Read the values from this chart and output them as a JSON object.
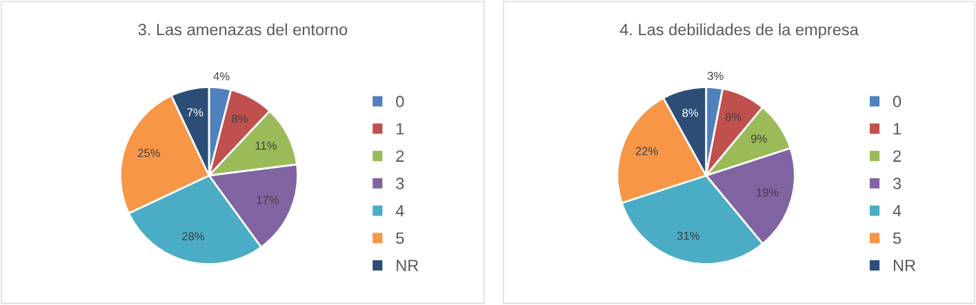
{
  "chart_data": [
    {
      "type": "pie",
      "title": "3. Las amenazas del entorno",
      "categories": [
        "0",
        "1",
        "2",
        "3",
        "4",
        "5",
        "NR"
      ],
      "values": [
        4,
        8,
        11,
        17,
        28,
        25,
        7
      ],
      "value_labels": [
        "4%",
        "8%",
        "11%",
        "17%",
        "28%",
        "25%",
        "7%"
      ],
      "colors": [
        "#4f81bd",
        "#c0504d",
        "#9bbb59",
        "#8064a2",
        "#4bacc6",
        "#f79646",
        "#2c4d75"
      ],
      "legend": "right"
    },
    {
      "type": "pie",
      "title": "4. Las debilidades de la empresa",
      "categories": [
        "0",
        "1",
        "2",
        "3",
        "4",
        "5",
        "NR"
      ],
      "values": [
        3,
        8,
        9,
        19,
        31,
        22,
        8
      ],
      "value_labels": [
        "3%",
        "8%",
        "9%",
        "19%",
        "31%",
        "22%",
        "8%"
      ],
      "colors": [
        "#4f81bd",
        "#c0504d",
        "#9bbb59",
        "#8064a2",
        "#4bacc6",
        "#f79646",
        "#2c4d75"
      ],
      "legend": "right"
    }
  ]
}
